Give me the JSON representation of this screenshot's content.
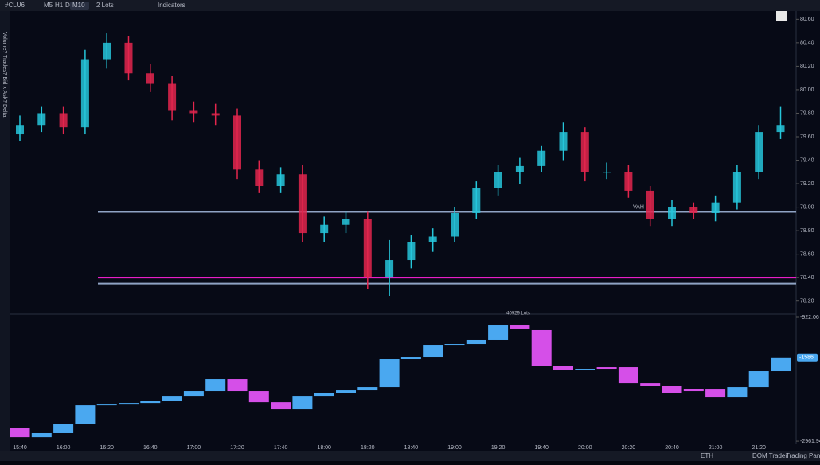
{
  "toolbar": {
    "symbol": "#CLU6",
    "timeframes": [
      "M5",
      "H1",
      "D",
      "M10"
    ],
    "lots": "2 Lots",
    "indicators": "Indicators"
  },
  "side_label": "Volume? Trades? Bid x Ask? Delta",
  "footer": {
    "session": "ETH",
    "buttons": [
      "DOM Trader",
      "Trading Panel"
    ]
  },
  "chart_data": [
    {
      "type": "candlestick",
      "up_color": "#26c6da",
      "down_color": "#e3264d",
      "open": [
        79.62,
        79.7,
        79.8,
        79.68,
        80.26,
        80.4,
        80.14,
        80.05,
        79.82,
        79.8,
        79.78,
        79.32,
        79.18,
        79.28,
        78.78,
        78.85,
        78.9,
        78.4,
        78.55,
        78.7,
        78.75,
        78.95,
        79.16,
        79.3,
        79.35,
        79.48,
        79.64,
        79.3,
        79.3,
        79.14,
        78.9,
        79.0,
        78.95,
        79.04,
        79.3,
        79.64
      ],
      "high": [
        79.78,
        79.86,
        79.86,
        80.34,
        80.48,
        80.46,
        80.22,
        80.12,
        79.9,
        79.88,
        79.84,
        79.4,
        79.34,
        79.36,
        78.92,
        78.96,
        78.96,
        78.72,
        78.76,
        78.82,
        79.0,
        79.22,
        79.36,
        79.42,
        79.52,
        79.72,
        79.68,
        79.38,
        79.36,
        79.18,
        79.06,
        79.04,
        79.1,
        79.36,
        79.7,
        79.86
      ],
      "low": [
        79.56,
        79.64,
        79.62,
        79.62,
        80.18,
        80.08,
        79.98,
        79.74,
        79.72,
        79.7,
        79.24,
        79.12,
        79.12,
        78.7,
        78.7,
        78.78,
        78.3,
        78.24,
        78.48,
        78.62,
        78.7,
        78.9,
        79.1,
        79.2,
        79.3,
        79.4,
        79.22,
        79.24,
        79.08,
        78.84,
        78.84,
        78.9,
        78.88,
        78.98,
        79.24,
        79.58
      ],
      "close": [
        79.7,
        79.8,
        79.68,
        80.26,
        80.4,
        80.14,
        80.05,
        79.82,
        79.8,
        79.78,
        79.32,
        79.18,
        79.28,
        78.78,
        78.85,
        78.9,
        78.4,
        78.55,
        78.7,
        78.75,
        78.95,
        79.16,
        79.3,
        79.35,
        79.48,
        79.64,
        79.3,
        79.3,
        79.14,
        78.9,
        79.0,
        78.95,
        79.04,
        79.3,
        79.64,
        79.7
      ],
      "hlines": [
        {
          "value": 78.96,
          "label": "VAH",
          "color": "#8fa3c4"
        },
        {
          "value": 78.4,
          "color": "#e81ec6"
        },
        {
          "value": 78.35,
          "color": "#8fa3c4"
        }
      ],
      "ylim": [
        78.11,
        80.67
      ],
      "yticks": [
        {
          "value": 80.6,
          "label": "80.60"
        },
        {
          "value": 80.4,
          "label": "80.40"
        },
        {
          "value": 80.2,
          "label": "80.20"
        },
        {
          "value": 80.0,
          "label": "80.00"
        },
        {
          "value": 79.8,
          "label": "79.80"
        },
        {
          "value": 79.6,
          "label": "79.60"
        },
        {
          "value": 79.4,
          "label": "79.40"
        },
        {
          "value": 79.2,
          "label": "79.20"
        },
        {
          "value": 79.0,
          "label": "79.00"
        },
        {
          "value": 78.8,
          "label": "78.80"
        },
        {
          "value": 78.6,
          "label": "78.60"
        },
        {
          "value": 78.4,
          "label": "78.40"
        },
        {
          "value": 78.2,
          "label": "78.20"
        }
      ]
    },
    {
      "type": "delta-candles",
      "annotation": "40929 Lots",
      "up_color": "#4aa8f0",
      "down_color": "#d54fe8",
      "categories": [
        "15:40",
        null,
        "16:00",
        null,
        "16:20",
        null,
        "16:40",
        null,
        "17:00",
        null,
        "17:20",
        null,
        "17:40",
        null,
        "18:00",
        null,
        "18:20",
        null,
        "18:40",
        null,
        "19:00",
        null,
        "19:20",
        null,
        "19:40",
        null,
        "20:00",
        null,
        "20:20",
        null,
        "20:40",
        null,
        "21:00",
        null,
        "21:20",
        null
      ],
      "open": [
        -2740,
        -2897,
        -2830,
        -2675,
        -2374,
        -2348,
        -2335,
        -2295,
        -2217,
        -2138,
        -1942,
        -2138,
        -2322,
        -2439,
        -2217,
        -2164,
        -2125,
        -2073,
        -1615,
        -1576,
        -1380,
        -1367,
        -1301,
        -1053,
        -1131,
        -1720,
        -1785,
        -1746,
        -1746,
        -2008,
        -2047,
        -2099,
        -2112,
        -2243,
        -2073,
        -1811
      ],
      "close": [
        -2897,
        -2830,
        -2675,
        -2374,
        -2348,
        -2335,
        -2295,
        -2217,
        -2138,
        -1942,
        -2138,
        -2322,
        -2439,
        -2217,
        -2164,
        -2125,
        -2073,
        -1615,
        -1576,
        -1380,
        -1367,
        -1301,
        -1053,
        -1118,
        -1720,
        -1785,
        -1772,
        -1772,
        -2008,
        -2047,
        -2164,
        -2138,
        -2243,
        -2073,
        -1811,
        -1586
      ],
      "last_value": -1586,
      "ylim": [
        -3000,
        -883
      ],
      "yticks": [
        -922.06,
        -2961.94
      ]
    }
  ]
}
